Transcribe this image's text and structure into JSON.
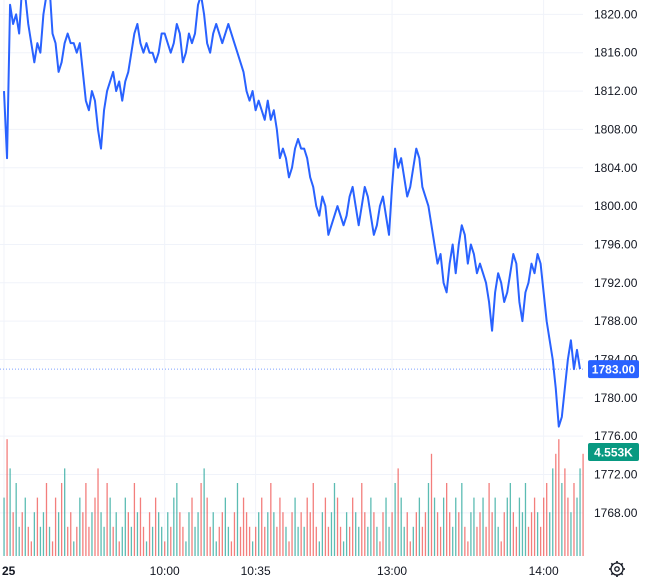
{
  "chart_data": {
    "type": "line",
    "colors": {
      "line": "#2962ff",
      "price_badge": "#2962ff",
      "volume_badge": "#089981",
      "volume_up": "#26a69a",
      "volume_down": "#ef5350",
      "grid": "#f0f3fa"
    },
    "y_axis": {
      "ylim": [
        1763.5,
        1821.5
      ],
      "ticks": [
        1820,
        1816,
        1812,
        1808,
        1804,
        1800,
        1796,
        1792,
        1788,
        1784,
        1780,
        1776,
        1772,
        1768
      ],
      "tick_labels": [
        "1820.00",
        "1816.00",
        "1812.00",
        "1808.00",
        "1804.00",
        "1800.00",
        "1796.00",
        "1792.00",
        "1788.00",
        "1784.00",
        "1780.00",
        "1776.00",
        "1772.00",
        "1768.00"
      ]
    },
    "x_axis": {
      "tick_labels": [
        "25",
        "10:00",
        "10:35",
        "13:00",
        "14:00"
      ],
      "tick_index": [
        0,
        53,
        83,
        128,
        178
      ]
    },
    "last_price_label": "1783.00",
    "last_price": 1783.0,
    "volume_label": "4.553K",
    "series": [
      {
        "values": [
          1812,
          1805,
          1821,
          1819,
          1820,
          1818,
          1823,
          1822,
          1819,
          1817,
          1815,
          1817,
          1816,
          1820,
          1822,
          1823,
          1818,
          1817,
          1814,
          1815,
          1817,
          1818,
          1817,
          1817,
          1816,
          1817,
          1814,
          1811,
          1810,
          1812,
          1811,
          1808,
          1806,
          1810,
          1812,
          1813,
          1814,
          1812,
          1813,
          1811,
          1813,
          1814,
          1816,
          1818,
          1819,
          1817,
          1816,
          1817,
          1816,
          1816,
          1815,
          1816,
          1818,
          1818,
          1817,
          1816,
          1817,
          1819,
          1818,
          1815,
          1816,
          1818,
          1817,
          1818,
          1821,
          1822,
          1820,
          1817,
          1816,
          1818,
          1819,
          1818,
          1817,
          1818,
          1819,
          1818,
          1817,
          1816,
          1815,
          1814,
          1812,
          1811,
          1812,
          1810,
          1811,
          1810,
          1809,
          1811,
          1809,
          1810,
          1808,
          1805,
          1806,
          1805,
          1803,
          1804,
          1806,
          1807,
          1806,
          1806,
          1805,
          1803,
          1802,
          1800,
          1799,
          1801,
          1800,
          1797,
          1798,
          1799,
          1800,
          1799,
          1798,
          1799,
          1801,
          1802,
          1800,
          1798,
          1800,
          1802,
          1801,
          1799,
          1797,
          1798,
          1800,
          1801,
          1799,
          1797,
          1802,
          1806,
          1804,
          1805,
          1803,
          1801,
          1802,
          1804,
          1806,
          1805,
          1802,
          1801,
          1800,
          1798,
          1796,
          1794,
          1795,
          1792,
          1791,
          1794,
          1796,
          1793,
          1796,
          1798,
          1797,
          1794,
          1796,
          1795,
          1793,
          1794,
          1793,
          1792,
          1790,
          1787,
          1791,
          1793,
          1792,
          1790,
          1791,
          1793,
          1795,
          1794,
          1790,
          1788,
          1791,
          1792,
          1794,
          1793,
          1795,
          1794,
          1791,
          1788,
          1786,
          1784,
          1781,
          1777,
          1778,
          1781,
          1784,
          1786,
          1783,
          1785,
          1783
        ]
      }
    ],
    "volume": {
      "max": 10,
      "values": [
        4,
        8,
        6,
        3,
        5,
        2,
        3,
        4,
        2,
        1,
        3,
        4,
        2,
        3,
        5,
        2,
        1,
        4,
        3,
        5,
        6,
        2,
        3,
        1,
        2,
        4,
        3,
        5,
        2,
        3,
        4,
        6,
        3,
        2,
        5,
        4,
        2,
        3,
        1,
        2,
        4,
        3,
        2,
        5,
        3,
        4,
        2,
        1,
        3,
        2,
        4,
        3,
        2,
        1,
        3,
        2,
        4,
        5,
        3,
        2,
        1,
        3,
        4,
        2,
        3,
        5,
        6,
        4,
        2,
        3,
        1,
        2,
        3,
        4,
        2,
        1,
        3,
        5,
        2,
        4,
        3,
        2,
        1,
        2,
        3,
        4,
        2,
        3,
        5,
        3,
        2,
        4,
        3,
        2,
        1,
        3,
        4,
        2,
        3,
        2,
        4,
        3,
        5,
        2,
        1,
        3,
        4,
        2,
        3,
        5,
        4,
        2,
        1,
        3,
        2,
        4,
        3,
        2,
        5,
        3,
        2,
        4,
        3,
        2,
        1,
        3,
        4,
        2,
        3,
        5,
        6,
        4,
        2,
        3,
        1,
        2,
        3,
        4,
        2,
        3,
        5,
        7,
        4,
        3,
        2,
        4,
        5,
        3,
        2,
        4,
        3,
        5,
        2,
        1,
        3,
        4,
        2,
        3,
        4,
        2,
        5,
        3,
        4,
        2,
        1,
        3,
        4,
        5,
        3,
        2,
        4,
        3,
        5,
        2,
        3,
        4,
        3,
        2,
        4,
        5,
        3,
        6,
        7,
        8,
        5,
        6,
        4,
        3,
        5,
        4,
        6,
        7
      ],
      "directions": [
        1,
        -1,
        1,
        -1,
        1,
        1,
        -1,
        1,
        -1,
        -1,
        1,
        -1,
        1,
        1,
        -1,
        1,
        -1,
        -1,
        1,
        -1,
        1,
        -1,
        -1,
        1,
        -1,
        1,
        -1,
        -1,
        -1,
        1,
        -1,
        -1,
        1,
        1,
        -1,
        1,
        -1,
        1,
        -1,
        1,
        1,
        -1,
        1,
        -1,
        1,
        -1,
        -1,
        1,
        -1,
        1,
        -1,
        1,
        1,
        -1,
        1,
        -1,
        1,
        1,
        -1,
        -1,
        1,
        1,
        -1,
        1,
        1,
        -1,
        1,
        -1,
        -1,
        1,
        1,
        -1,
        -1,
        1,
        1,
        -1,
        -1,
        1,
        -1,
        -1,
        -1,
        -1,
        1,
        -1,
        1,
        -1,
        -1,
        1,
        -1,
        1,
        -1,
        -1,
        -1,
        1,
        -1,
        -1,
        1,
        1,
        -1,
        1,
        -1,
        -1,
        -1,
        -1,
        1,
        1,
        -1,
        -1,
        1,
        1,
        -1,
        -1,
        1,
        1,
        -1,
        -1,
        1,
        1,
        -1,
        -1,
        1,
        1,
        -1,
        1,
        -1,
        -1,
        1,
        1,
        -1,
        1,
        -1,
        1,
        1,
        -1,
        -1,
        1,
        -1,
        1,
        -1,
        -1,
        1,
        -1,
        1,
        -1,
        -1,
        1,
        -1,
        -1,
        1,
        1,
        -1,
        1,
        -1,
        -1,
        1,
        1,
        -1,
        -1,
        1,
        -1,
        -1,
        -1,
        1,
        1,
        -1,
        -1,
        1,
        1,
        -1,
        -1,
        1,
        1,
        1,
        -1,
        -1,
        -1,
        1,
        -1,
        -1,
        -1,
        1,
        1,
        -1,
        -1,
        1,
        -1,
        -1,
        1,
        -1,
        1,
        1,
        -1,
        1,
        1,
        1
      ]
    }
  },
  "icons": {
    "settings": "gear-icon"
  }
}
